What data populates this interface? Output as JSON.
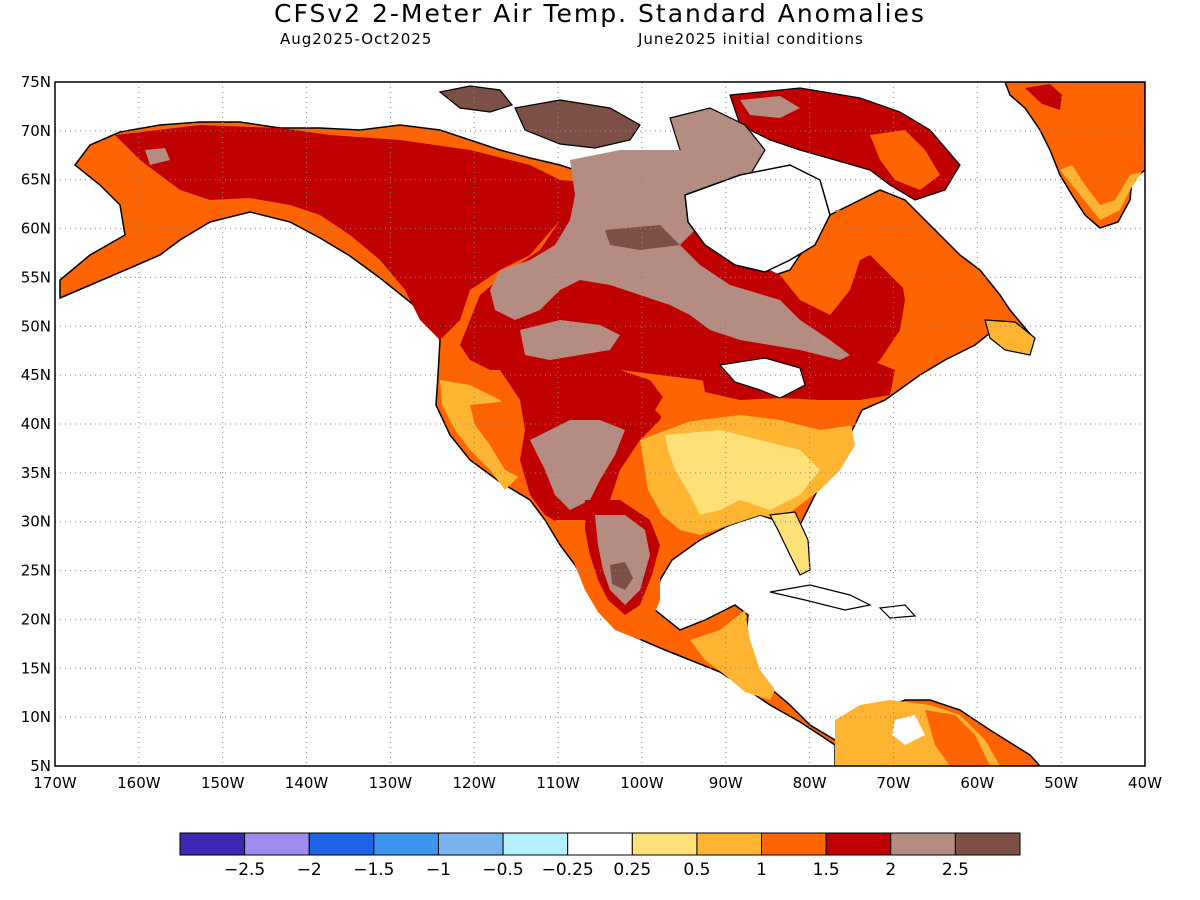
{
  "title": "CFSv2 2-Meter Air Temp. Standard Anomalies",
  "subtitle_left": "Aug2025-Oct2025",
  "subtitle_right": "June2025 initial conditions",
  "map": {
    "lon_range": [
      -170,
      -40
    ],
    "lat_range": [
      5,
      75
    ],
    "lat_ticks": [
      "75N",
      "70N",
      "65N",
      "60N",
      "55N",
      "50N",
      "45N",
      "40N",
      "35N",
      "30N",
      "25N",
      "20N",
      "15N",
      "10N",
      "5N"
    ],
    "lon_ticks": [
      "170W",
      "160W",
      "150W",
      "140W",
      "130W",
      "120W",
      "110W",
      "100W",
      "90W",
      "80W",
      "70W",
      "60W",
      "50W",
      "40W"
    ],
    "grid": "dotted"
  },
  "colorbar": {
    "colors": [
      "#3c28b4",
      "#a08cf0",
      "#1e64e6",
      "#3c96f0",
      "#78b4f0",
      "#b4f0fa",
      "#ffffff",
      "#ffe178",
      "#ffb432",
      "#ff6400",
      "#c00000",
      "#b48c82",
      "#7d5046"
    ],
    "labels": [
      "-2.5",
      "-2",
      "-1.5",
      "-1",
      "-0.5",
      "-0.25",
      "0.25",
      "0.5",
      "1",
      "1.5",
      "2",
      "2.5"
    ]
  }
}
